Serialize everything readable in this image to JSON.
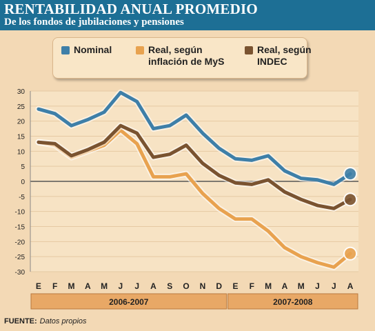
{
  "header": {
    "title": "RENTABILIDAD ANUAL PROMEDIO",
    "subtitle": "De los fondos de jubilaciones y pensiones"
  },
  "legend": {
    "nominal": "Nominal",
    "real_mys_1": "Real, según",
    "real_mys_2": "inflación de MyS",
    "real_indec_1": "Real, según",
    "real_indec_2": "INDEC"
  },
  "colors": {
    "nominal": "#3e7fa8",
    "real_mys": "#e8a24f",
    "real_indec": "#7a5330"
  },
  "footer": {
    "label": "FUENTE:",
    "value": "Datos propios"
  },
  "chart_data": {
    "type": "line",
    "categories": [
      "E",
      "F",
      "M",
      "A",
      "M",
      "J",
      "J",
      "A",
      "S",
      "O",
      "N",
      "D",
      "E",
      "F",
      "M",
      "A",
      "M",
      "J",
      "J",
      "A"
    ],
    "periods": [
      {
        "label": "2006-2007",
        "from": 0,
        "to": 11
      },
      {
        "label": "2007-2008",
        "from": 12,
        "to": 19
      }
    ],
    "ylim": [
      -30,
      30
    ],
    "yticks": [
      30,
      25,
      20,
      15,
      10,
      5,
      0,
      -5,
      -10,
      -15,
      -20,
      -25,
      -30
    ],
    "series": [
      {
        "name": "Nominal",
        "key": "nominal",
        "values": [
          24,
          22.5,
          18.5,
          20.5,
          23,
          29.5,
          26.5,
          17.5,
          18.5,
          22,
          16,
          11,
          7.5,
          7,
          8.5,
          3.5,
          1,
          0.5,
          -1,
          2.5
        ]
      },
      {
        "name": "Real, según inflación de MyS",
        "key": "real_mys",
        "values": [
          13,
          12,
          8,
          10,
          12,
          17,
          12.5,
          1.5,
          1.5,
          2.5,
          -4,
          -9,
          -12.5,
          -12.5,
          -16.5,
          -22,
          -25,
          -27,
          -28.5,
          -24
        ]
      },
      {
        "name": "Real, según INDEC",
        "key": "real_indec",
        "values": [
          13,
          12.5,
          8.5,
          10.5,
          13,
          18.5,
          16,
          8,
          9,
          12,
          6,
          2,
          -0.5,
          -1,
          0.5,
          -3.5,
          -6,
          -8,
          -9,
          -6
        ]
      }
    ]
  }
}
